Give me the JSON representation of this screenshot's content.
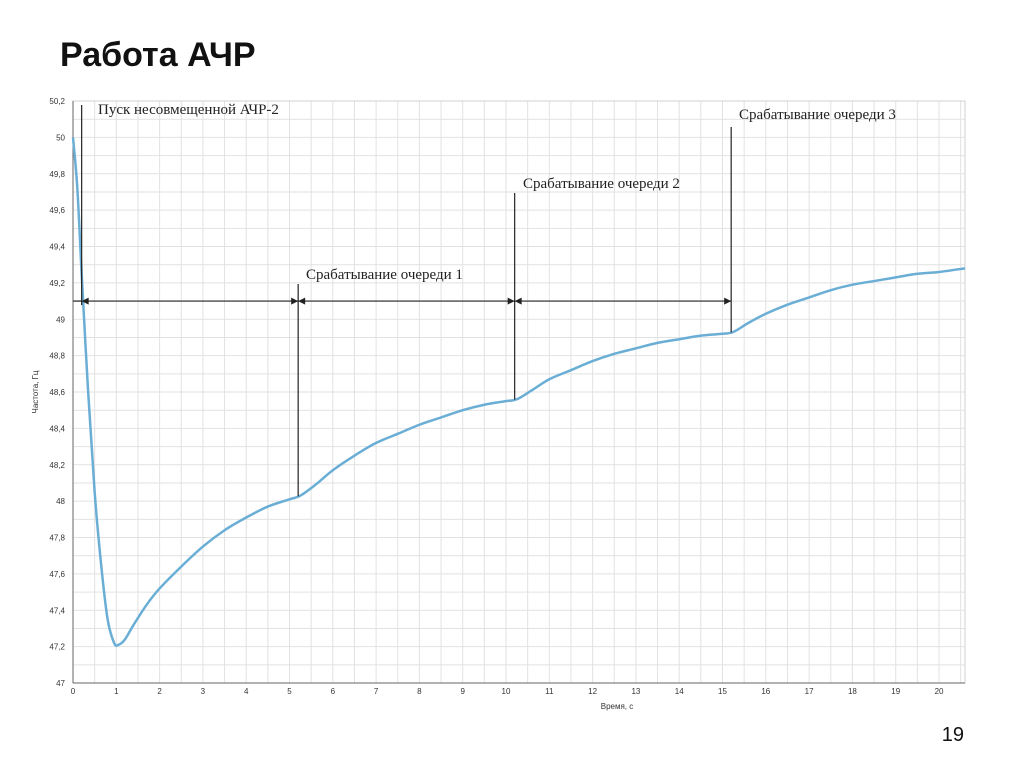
{
  "slide": {
    "title": "Работа АЧР",
    "page_number": "19"
  },
  "chart_data": {
    "type": "line",
    "title": "",
    "xlabel": "Время, с",
    "ylabel": "Частота, Гц",
    "xlim": [
      0,
      20.6
    ],
    "ylim": [
      47,
      50.2
    ],
    "x_ticks": [
      "0",
      "1",
      "2",
      "3",
      "4",
      "5",
      "6",
      "7",
      "8",
      "9",
      "10",
      "11",
      "12",
      "13",
      "14",
      "15",
      "16",
      "17",
      "18",
      "19",
      "20"
    ],
    "y_ticks": [
      "50,2",
      "50",
      "49,8",
      "49,6",
      "49,4",
      "49,2",
      "49",
      "48,8",
      "48,6",
      "48,4",
      "48,2",
      "48",
      "47,8",
      "47,6",
      "47,4",
      "47,2",
      "47"
    ],
    "grid": true,
    "line_color": "#6aaed6",
    "series": [
      {
        "x": [
          0,
          0.1,
          0.2,
          0.35,
          0.5,
          0.65,
          0.8,
          0.95,
          1.05,
          1.2,
          1.4,
          1.7,
          2.0,
          2.5,
          3.0,
          3.5,
          4.0,
          4.5,
          5.0,
          5.25,
          5.6,
          6.0,
          6.5,
          7.0,
          7.5,
          8.0,
          8.5,
          9.0,
          9.5,
          10.0,
          10.25,
          10.6,
          11.0,
          11.5,
          12.0,
          12.5,
          13.0,
          13.5,
          14.0,
          14.5,
          15.0,
          15.25,
          15.6,
          16.0,
          16.5,
          17.0,
          17.5,
          18.0,
          18.5,
          19.0,
          19.5,
          20.0,
          20.6
        ],
        "y": [
          50.0,
          49.72,
          49.25,
          48.6,
          48.05,
          47.65,
          47.35,
          47.22,
          47.21,
          47.24,
          47.32,
          47.43,
          47.52,
          47.64,
          47.75,
          47.84,
          47.91,
          47.97,
          48.01,
          48.03,
          48.09,
          48.17,
          48.25,
          48.32,
          48.37,
          48.42,
          48.46,
          48.5,
          48.53,
          48.55,
          48.56,
          48.61,
          48.67,
          48.72,
          48.77,
          48.81,
          48.84,
          48.87,
          48.89,
          48.91,
          48.92,
          48.93,
          48.98,
          49.03,
          49.08,
          49.12,
          49.16,
          49.19,
          49.21,
          49.23,
          49.25,
          49.26,
          49.28
        ]
      }
    ],
    "events": [
      {
        "label": "Пуск несовмещенной АЧР-2",
        "x": 0.2
      },
      {
        "label": "Срабатывание очереди 1",
        "x": 5.2
      },
      {
        "label": "Срабатывание очереди 2",
        "x": 10.2
      },
      {
        "label": "Срабатывание очереди 3",
        "x": 15.2
      }
    ],
    "interval_arrows_y": 49.1
  }
}
